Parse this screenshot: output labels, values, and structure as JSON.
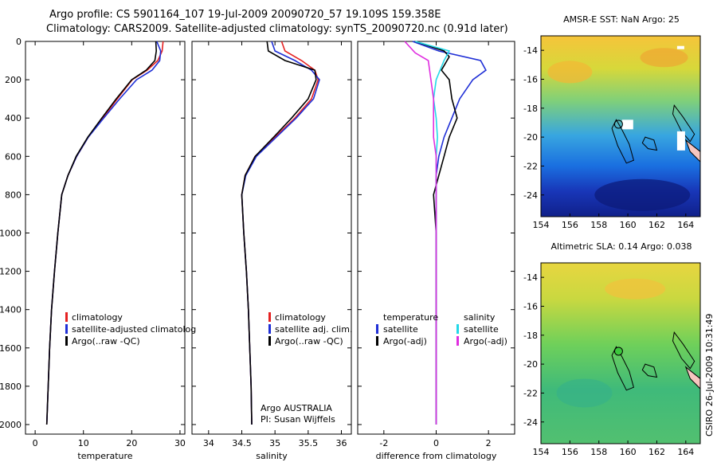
{
  "titles": {
    "line1": "Argo profile: CS 5901164_107 19-Jul-2009 20090720_57 19.109S 159.358E",
    "line2": "Climatology: CARS2009. Satellite-adjusted climatology: synTS_20090720.nc (0.91d later)"
  },
  "side_stamp": "CSIRO 26-Jul-2009 10:31:49",
  "colors": {
    "clim": "#e52222",
    "sat": "#1f2fd6",
    "argo": "#000000",
    "argo_adj": "#e02ee0",
    "sat_diff": "#22d8e8"
  },
  "chart_data": [
    {
      "type": "line",
      "xlabel": "temperature",
      "ylim": [
        2050,
        0
      ],
      "xlim": [
        -2,
        31
      ],
      "xticks": [
        0,
        10,
        20,
        30
      ],
      "yticks": [
        0,
        200,
        400,
        600,
        800,
        1000,
        1200,
        1400,
        1600,
        1800,
        2000
      ],
      "legend": [
        "climatology",
        "satellite-adjusted climatolog",
        "Argo(..raw -QC)"
      ],
      "series": [
        {
          "name": "climatology",
          "x": [
            26.5,
            26.3,
            25.4,
            23.2,
            20.1,
            17.0,
            14.0,
            11.0,
            8.6,
            6.8,
            5.5,
            4.7,
            4.0,
            3.4,
            3.0,
            2.7,
            2.4
          ],
          "y": [
            0,
            50,
            100,
            150,
            200,
            300,
            400,
            500,
            600,
            700,
            800,
            1000,
            1200,
            1400,
            1600,
            1800,
            2000
          ]
        },
        {
          "name": "satellite-adjusted climatolog",
          "x": [
            25.2,
            26.0,
            25.8,
            24.2,
            21.0,
            17.5,
            14.2,
            11.0,
            8.6,
            6.8,
            5.5,
            4.7,
            4.0,
            3.4,
            3.0,
            2.7,
            2.4
          ],
          "y": [
            0,
            50,
            100,
            150,
            200,
            300,
            400,
            500,
            600,
            700,
            800,
            1000,
            1200,
            1400,
            1600,
            1800,
            2000
          ]
        },
        {
          "name": "Argo(..raw -QC)",
          "x": [
            25.0,
            25.1,
            24.8,
            23.0,
            20.0,
            16.8,
            13.8,
            10.9,
            8.5,
            6.8,
            5.5,
            4.7,
            4.0,
            3.4,
            3.0,
            2.7,
            2.4
          ],
          "y": [
            0,
            50,
            100,
            150,
            200,
            300,
            400,
            500,
            600,
            700,
            800,
            1000,
            1200,
            1400,
            1600,
            1800,
            2000
          ]
        }
      ]
    },
    {
      "type": "line",
      "xlabel": "salinity",
      "ylim": [
        2050,
        0
      ],
      "xlim": [
        33.75,
        36.15
      ],
      "xticks": [
        34,
        34.5,
        35,
        35.5,
        36
      ],
      "legend": [
        "climatology",
        "satellite adj. clim.",
        "Argo(..raw -QC)"
      ],
      "annotation": [
        "Argo AUSTRALIA",
        "PI: Susan Wijffels"
      ],
      "series": [
        {
          "name": "climatology",
          "x": [
            35.1,
            35.15,
            35.4,
            35.6,
            35.65,
            35.55,
            35.3,
            35.0,
            34.7,
            34.55,
            34.5,
            34.53,
            34.57,
            34.6,
            34.62,
            34.64,
            34.65
          ],
          "y": [
            0,
            50,
            100,
            150,
            200,
            300,
            400,
            500,
            600,
            700,
            800,
            1000,
            1200,
            1400,
            1600,
            1800,
            2000
          ]
        },
        {
          "name": "satellite adj. clim.",
          "x": [
            34.95,
            35.0,
            35.3,
            35.55,
            35.67,
            35.58,
            35.32,
            35.02,
            34.72,
            34.56,
            34.5,
            34.53,
            34.57,
            34.6,
            34.62,
            34.64,
            34.65
          ],
          "y": [
            0,
            50,
            100,
            150,
            200,
            300,
            400,
            500,
            600,
            700,
            800,
            1000,
            1200,
            1400,
            1600,
            1800,
            2000
          ]
        },
        {
          "name": "Argo(..raw -QC)",
          "x": [
            34.88,
            34.9,
            35.15,
            35.6,
            35.62,
            35.5,
            35.25,
            34.98,
            34.7,
            34.55,
            34.5,
            34.53,
            34.57,
            34.6,
            34.62,
            34.64,
            34.65
          ],
          "y": [
            0,
            50,
            100,
            150,
            200,
            300,
            400,
            500,
            600,
            700,
            800,
            1000,
            1200,
            1400,
            1600,
            1800,
            2000
          ]
        }
      ]
    },
    {
      "type": "line",
      "xlabel": "difference from climatology",
      "ylim": [
        2050,
        0
      ],
      "xlim": [
        -3,
        3
      ],
      "xticks": [
        -2,
        0,
        2
      ],
      "legend_groups": [
        {
          "heading": "temperature",
          "items": [
            "satellite",
            "Argo(-adj)"
          ]
        },
        {
          "heading": "salinity",
          "items": [
            "satellite",
            "Argo(-adj)"
          ]
        }
      ],
      "series": [
        {
          "name": "temperature satellite",
          "x": [
            -0.9,
            0.1,
            1.7,
            1.9,
            1.4,
            0.9,
            0.6,
            0.3,
            0.1,
            0.0,
            0.0,
            0.0,
            0.0,
            0.0,
            0.0,
            0.0
          ],
          "y": [
            0,
            50,
            100,
            150,
            200,
            300,
            400,
            500,
            600,
            700,
            800,
            1000,
            1200,
            1400,
            1600,
            2000
          ]
        },
        {
          "name": "temperature Argo(-adj)",
          "x": [
            -0.8,
            0.3,
            0.5,
            0.2,
            0.5,
            0.6,
            0.8,
            0.5,
            0.3,
            0.1,
            -0.1,
            0.0,
            0.0,
            0.0,
            0.0,
            0.0
          ],
          "y": [
            0,
            50,
            80,
            150,
            200,
            300,
            400,
            500,
            600,
            700,
            800,
            1000,
            1200,
            1400,
            1600,
            2000
          ]
        },
        {
          "name": "salinity satellite",
          "x": [
            -0.8,
            0.5,
            0.3,
            0.0,
            -0.1,
            0.0,
            0.05,
            0.0,
            0.0,
            0.0,
            0.0,
            0.0,
            0.0,
            0.0
          ],
          "y": [
            0,
            50,
            100,
            200,
            300,
            400,
            500,
            600,
            800,
            1000,
            1200,
            1400,
            1600,
            2000
          ]
        },
        {
          "name": "salinity Argo(-adj)",
          "x": [
            -1.2,
            -0.8,
            -0.3,
            -0.2,
            -0.1,
            -0.1,
            0.0,
            0.0,
            0.0,
            0.0,
            0.0,
            0.0,
            0.0
          ],
          "y": [
            0,
            60,
            100,
            200,
            300,
            500,
            600,
            800,
            1000,
            1200,
            1400,
            1600,
            2000
          ]
        }
      ]
    },
    {
      "type": "heatmap",
      "title": "AMSR-E SST: NaN Argo: 25",
      "xlim": [
        154,
        165
      ],
      "ylim": [
        -25.5,
        -13
      ],
      "xticks": [
        154,
        156,
        158,
        160,
        162,
        164
      ],
      "yticks": [
        -14,
        -16,
        -18,
        -20,
        -22,
        -24
      ],
      "argo_position": [
        159.358,
        -19.109
      ]
    },
    {
      "type": "heatmap",
      "title": "Altimetric SLA: 0.14 Argo: 0.038",
      "xlim": [
        154,
        165
      ],
      "ylim": [
        -25.5,
        -13
      ],
      "xticks": [
        154,
        156,
        158,
        160,
        162,
        164
      ],
      "yticks": [
        -14,
        -16,
        -18,
        -20,
        -22,
        -24
      ],
      "argo_position": [
        159.358,
        -19.109
      ]
    }
  ]
}
